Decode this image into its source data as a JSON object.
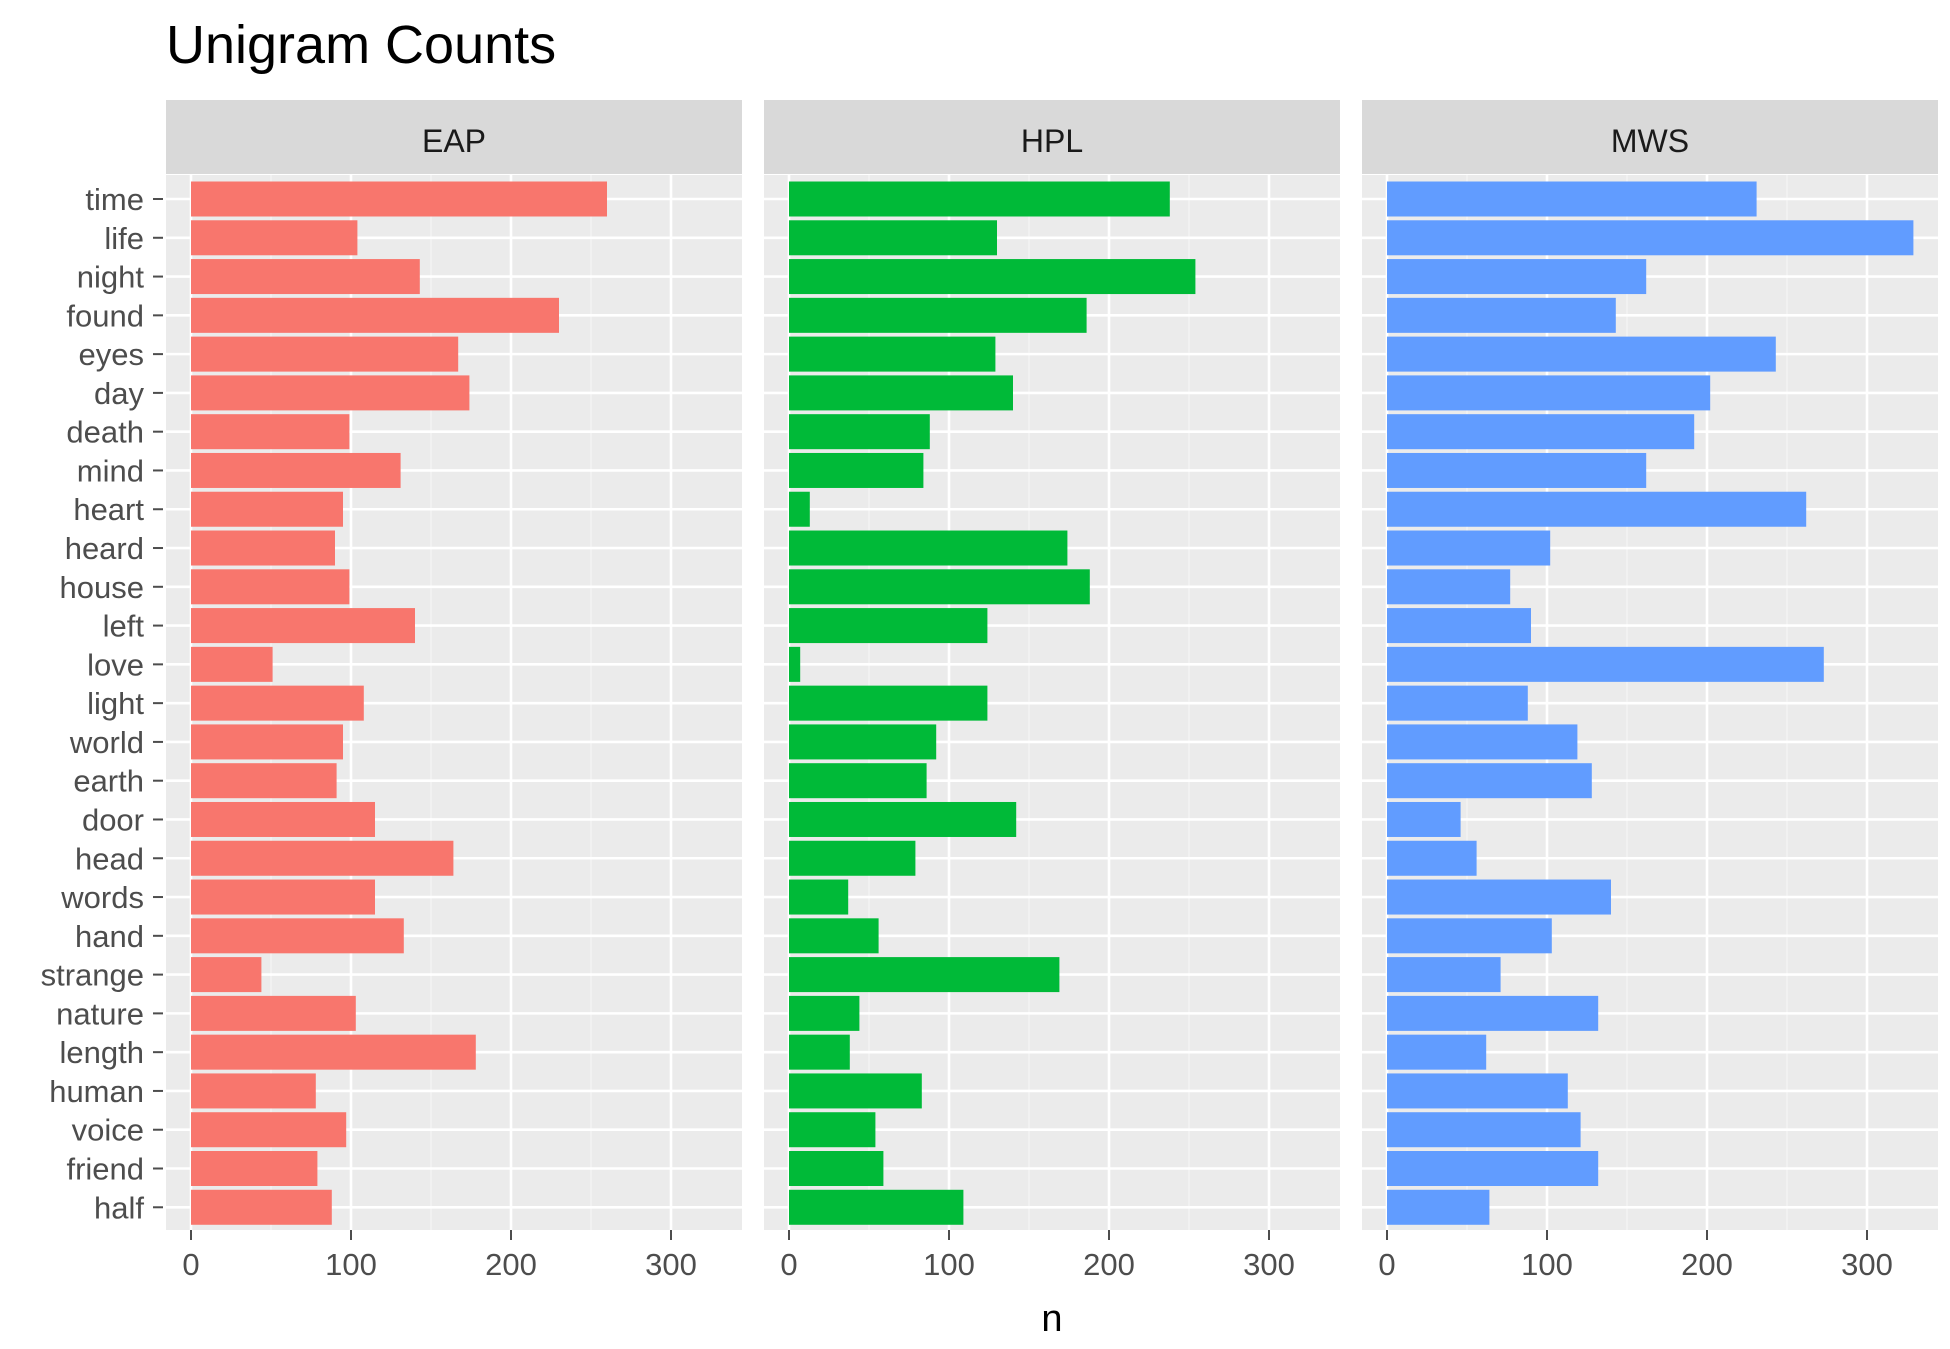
{
  "chart_data": {
    "type": "bar",
    "orientation": "horizontal",
    "title": "Unigram Counts",
    "xlabel": "n",
    "ylabel": "",
    "xlim": [
      0,
      330
    ],
    "x_ticks": [
      "0",
      "100",
      "200",
      "300"
    ],
    "grid": true,
    "legend": "none",
    "categories": [
      "time",
      "life",
      "night",
      "found",
      "eyes",
      "day",
      "death",
      "mind",
      "heart",
      "heard",
      "house",
      "left",
      "love",
      "light",
      "world",
      "earth",
      "door",
      "head",
      "words",
      "hand",
      "strange",
      "nature",
      "length",
      "human",
      "voice",
      "friend",
      "half"
    ],
    "facets": [
      {
        "name": "EAP",
        "color": "#F8766D",
        "values": [
          260,
          104,
          143,
          230,
          167,
          174,
          99,
          131,
          95,
          90,
          99,
          140,
          51,
          108,
          95,
          91,
          115,
          164,
          115,
          133,
          44,
          103,
          178,
          78,
          97,
          79,
          88
        ]
      },
      {
        "name": "HPL",
        "color": "#00BA38",
        "values": [
          238,
          130,
          254,
          186,
          129,
          140,
          88,
          84,
          13,
          174,
          188,
          124,
          7,
          124,
          92,
          86,
          142,
          79,
          37,
          56,
          169,
          44,
          38,
          83,
          54,
          59,
          109
        ]
      },
      {
        "name": "MWS",
        "color": "#619CFF",
        "values": [
          231,
          329,
          162,
          143,
          243,
          202,
          192,
          162,
          262,
          102,
          77,
          90,
          273,
          88,
          119,
          128,
          46,
          56,
          140,
          103,
          71,
          132,
          62,
          113,
          121,
          132,
          64
        ]
      }
    ]
  }
}
